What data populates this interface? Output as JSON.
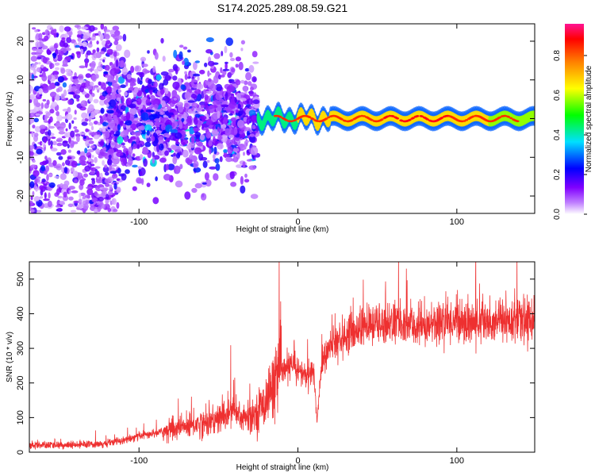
{
  "page": {
    "title": "S174.2025.289.08.59.G21"
  },
  "chart_data": [
    {
      "type": "heatmap",
      "title": "S174.2025.289.08.59.G21",
      "xlabel": "Height of straight line (km)",
      "ylabel": "Frequency (Hz)",
      "xlim": [
        -169,
        149
      ],
      "ylim": [
        -24.5,
        24.5
      ],
      "xticks": [
        -100,
        0,
        100
      ],
      "yticks": [
        -20,
        -10,
        0,
        10,
        20
      ],
      "colorbar": {
        "label": "Normalized spectral amplitude",
        "range": [
          0.0,
          0.96
        ],
        "ticks": [
          0.0,
          0.2,
          0.4,
          0.6,
          0.8
        ],
        "colors": [
          "#ffffff",
          "#a020f0",
          "#0000ff",
          "#00ffff",
          "#00ff00",
          "#ffff00",
          "#ff8000",
          "#ff0000",
          "#ff1493"
        ]
      },
      "description_regions": [
        {
          "x_range": [
            -169,
            -120
          ],
          "freq_spread_hz": 24,
          "amplitude": 0.15
        },
        {
          "x_range": [
            -120,
            -25
          ],
          "freq_spread_hz": 12,
          "amplitude": 0.25
        },
        {
          "x_range": [
            -25,
            149
          ],
          "freq_center_hz": 0,
          "freq_spread_hz": 2,
          "amplitude": 0.9
        }
      ]
    },
    {
      "type": "line",
      "title": "",
      "xlabel": "Height of straight line (km)",
      "ylabel": "SNR (10 * v/v)",
      "xlim": [
        -169,
        149
      ],
      "ylim": [
        0,
        550
      ],
      "xticks": [
        -100,
        0,
        100
      ],
      "yticks": [
        0,
        100,
        200,
        300,
        400,
        500
      ],
      "color": "#ee3030",
      "series": [
        {
          "name": "SNR",
          "x": [
            -169,
            -160,
            -150,
            -140,
            -130,
            -120,
            -110,
            -100,
            -90,
            -80,
            -70,
            -60,
            -50,
            -45,
            -40,
            -35,
            -30,
            -25,
            -20,
            -15,
            -10,
            -5,
            0,
            5,
            10,
            12,
            15,
            20,
            25,
            30,
            40,
            50,
            60,
            70,
            80,
            90,
            100,
            110,
            120,
            130,
            140,
            149
          ],
          "values": [
            20,
            20,
            20,
            20,
            22,
            25,
            35,
            45,
            55,
            65,
            75,
            85,
            95,
            110,
            120,
            100,
            100,
            120,
            150,
            200,
            230,
            250,
            240,
            220,
            230,
            90,
            260,
            300,
            320,
            340,
            360,
            370,
            375,
            360,
            365,
            375,
            380,
            370,
            380,
            385,
            375,
            385
          ]
        }
      ]
    }
  ]
}
